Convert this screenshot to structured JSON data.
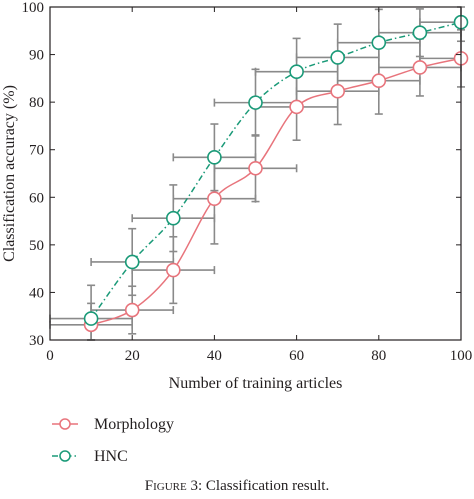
{
  "chart_data": {
    "type": "line",
    "title": "",
    "xlabel": "Number of training articles",
    "ylabel": "Classification accuracy (%)",
    "xlim": [
      0,
      100
    ],
    "ylim": [
      30,
      100
    ],
    "xticks": [
      0,
      20,
      40,
      60,
      80,
      100
    ],
    "yticks": [
      30,
      40,
      50,
      60,
      70,
      80,
      90,
      100
    ],
    "grid": false,
    "legend_position": "bottom-left, below plot",
    "x": [
      10,
      20,
      30,
      40,
      50,
      60,
      70,
      80,
      90,
      100
    ],
    "series": [
      {
        "name": "Morphology",
        "color": "#e8747c",
        "line_style": "solid",
        "marker": "open-circle",
        "values": [
          33.2,
          36.3,
          44.7,
          59.7,
          66.1,
          79.0,
          82.3,
          84.5,
          87.3,
          89.2
        ],
        "y_error": [
          4.5,
          5.0,
          7.0,
          9.5,
          7.0,
          7.0,
          7.0,
          7.0,
          6.0,
          6.0
        ],
        "x_error": [
          10,
          10,
          10,
          10,
          10,
          10,
          10,
          10,
          10,
          10
        ]
      },
      {
        "name": "HNC",
        "color": "#1a9a78",
        "line_style": "dash-dot",
        "marker": "open-circle",
        "values": [
          34.5,
          46.4,
          55.6,
          68.4,
          79.9,
          86.4,
          89.4,
          92.5,
          94.6,
          96.8
        ],
        "y_error": [
          7.0,
          7.0,
          7.0,
          7.0,
          7.0,
          7.0,
          7.0,
          7.0,
          5.0,
          4.0
        ],
        "x_error": [
          10,
          10,
          10,
          10,
          10,
          10,
          10,
          10,
          10,
          10
        ]
      }
    ],
    "error_bar_color": "#8a8a8a"
  },
  "caption": {
    "label": "Figure 3:",
    "text": "Classification result."
  }
}
